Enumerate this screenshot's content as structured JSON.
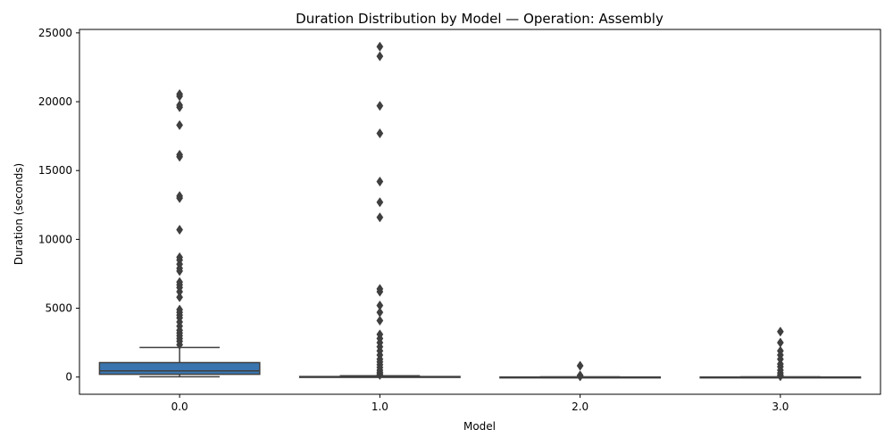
{
  "chart_data": {
    "type": "box",
    "title": "Duration Distribution by Model — Operation: Assembly",
    "xlabel": "Model",
    "ylabel": "Duration (seconds)",
    "categories": [
      "0.0",
      "1.0",
      "2.0",
      "3.0"
    ],
    "ylim": [
      -1250,
      25250
    ],
    "yticks": [
      0,
      5000,
      10000,
      15000,
      20000,
      25000
    ],
    "grid": false,
    "colors": {
      "box_0": "#3a75af",
      "box_1": "#e0843c",
      "box_2": "#57a352",
      "box_3": "#c43c39",
      "line": "#3f3f3f"
    },
    "boxes": [
      {
        "category": "0.0",
        "whisker_low": 20,
        "q1": 200,
        "median": 450,
        "q3": 1050,
        "whisker_high": 2150,
        "outliers": [
          2350,
          2600,
          2800,
          3000,
          3200,
          3400,
          3700,
          4000,
          4300,
          4500,
          4700,
          4900,
          5800,
          6200,
          6500,
          6700,
          6900,
          7700,
          7900,
          8200,
          8500,
          8700,
          10700,
          13000,
          13150,
          16000,
          16150,
          18300,
          19600,
          19750,
          20400,
          20550
        ]
      },
      {
        "category": "1.0",
        "whisker_low": 0,
        "q1": 5,
        "median": 15,
        "q3": 40,
        "whisker_high": 95,
        "outliers": [
          150,
          250,
          350,
          500,
          700,
          900,
          1100,
          1300,
          1600,
          1900,
          2200,
          2500,
          2800,
          3100,
          4100,
          4700,
          5200,
          6200,
          6400,
          11600,
          12700,
          14200,
          17700,
          19700,
          23300,
          24000
        ]
      },
      {
        "category": "2.0",
        "whisker_low": 0,
        "q1": 0,
        "median": 0,
        "q3": 5,
        "whisker_high": 10,
        "outliers": [
          50,
          120,
          820
        ]
      },
      {
        "category": "3.0",
        "whisker_low": 0,
        "q1": 0,
        "median": 0,
        "q3": 5,
        "whisker_high": 10,
        "outliers": [
          60,
          150,
          300,
          500,
          750,
          950,
          1300,
          1600,
          1900,
          2500,
          3300
        ]
      }
    ]
  }
}
